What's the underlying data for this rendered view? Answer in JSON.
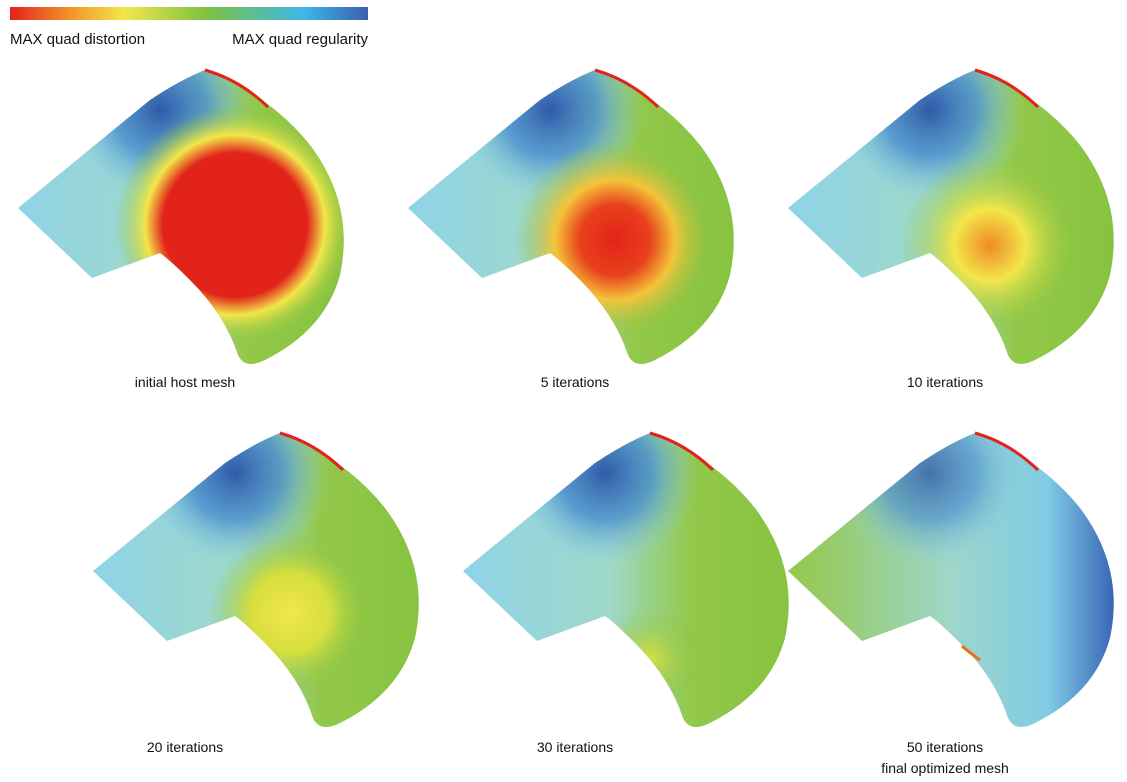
{
  "legend": {
    "left_label": "MAX quad distortion",
    "right_label": "MAX quad regularity"
  },
  "panels": [
    {
      "caption": [
        "initial host mesh"
      ]
    },
    {
      "caption": [
        "5 iterations"
      ]
    },
    {
      "caption": [
        "10 iterations"
      ]
    },
    {
      "caption": [
        "20 iterations"
      ]
    },
    {
      "caption": [
        "30 iterations"
      ]
    },
    {
      "caption": [
        "50 iterations",
        "final optimized mesh"
      ]
    }
  ]
}
